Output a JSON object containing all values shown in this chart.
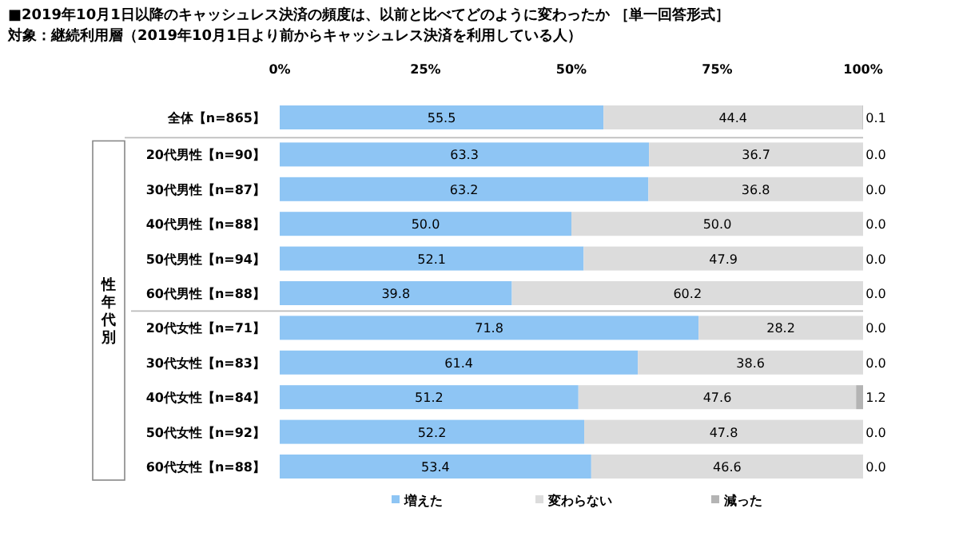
{
  "chart_data": {
    "type": "bar",
    "orientation": "horizontal",
    "stacked": true,
    "title": "■2019年10月1日以降のキャッシュレス決済の頻度は、以前と比べてどのように変わったか ［単一回答形式］",
    "subtitle": "対象：継続利用層（2019年10月1日より前からキャッシュレス決済を利用している人）",
    "categories": [
      "全体【n=865】",
      "20代男性【n=90】",
      "30代男性【n=87】",
      "40代男性【n=88】",
      "50代男性【n=94】",
      "60代男性【n=88】",
      "20代女性【n=71】",
      "30代女性【n=83】",
      "40代女性【n=84】",
      "50代女性【n=92】",
      "60代女性【n=88】"
    ],
    "series": [
      {
        "name": "増えた",
        "color": "#8ec5f4",
        "values": [
          55.5,
          63.3,
          63.2,
          50.0,
          52.1,
          39.8,
          71.8,
          61.4,
          51.2,
          52.2,
          53.4
        ],
        "value_labels": [
          "55.5",
          "63.3",
          "63.2",
          "50.0",
          "52.1",
          "39.8",
          "71.8",
          "61.4",
          "51.2",
          "52.2",
          "53.4"
        ]
      },
      {
        "name": "変わらない",
        "color": "#dcdcdc",
        "values": [
          44.4,
          36.7,
          36.8,
          50.0,
          47.9,
          60.2,
          28.2,
          38.6,
          47.6,
          47.8,
          46.6
        ],
        "value_labels": [
          "44.4",
          "36.7",
          "36.8",
          "50.0",
          "47.9",
          "60.2",
          "28.2",
          "38.6",
          "47.6",
          "47.8",
          "46.6"
        ]
      },
      {
        "name": "減った",
        "color": "#b4b4b4",
        "values": [
          0.1,
          0.0,
          0.0,
          0.0,
          0.0,
          0.0,
          0.0,
          0.0,
          1.2,
          0.0,
          0.0
        ],
        "value_labels": [
          "0.1",
          "0.0",
          "0.0",
          "0.0",
          "0.0",
          "0.0",
          "0.0",
          "0.0",
          "1.2",
          "0.0",
          "0.0"
        ]
      }
    ],
    "xlim": [
      0,
      100
    ],
    "xticks": [
      {
        "value": 0,
        "label": "0%"
      },
      {
        "value": 25,
        "label": "25%"
      },
      {
        "value": 50,
        "label": "50%"
      },
      {
        "value": 75,
        "label": "75%"
      },
      {
        "value": 100,
        "label": "100%"
      }
    ],
    "legend": "bottom",
    "annotations": [
      "性年代別"
    ]
  }
}
